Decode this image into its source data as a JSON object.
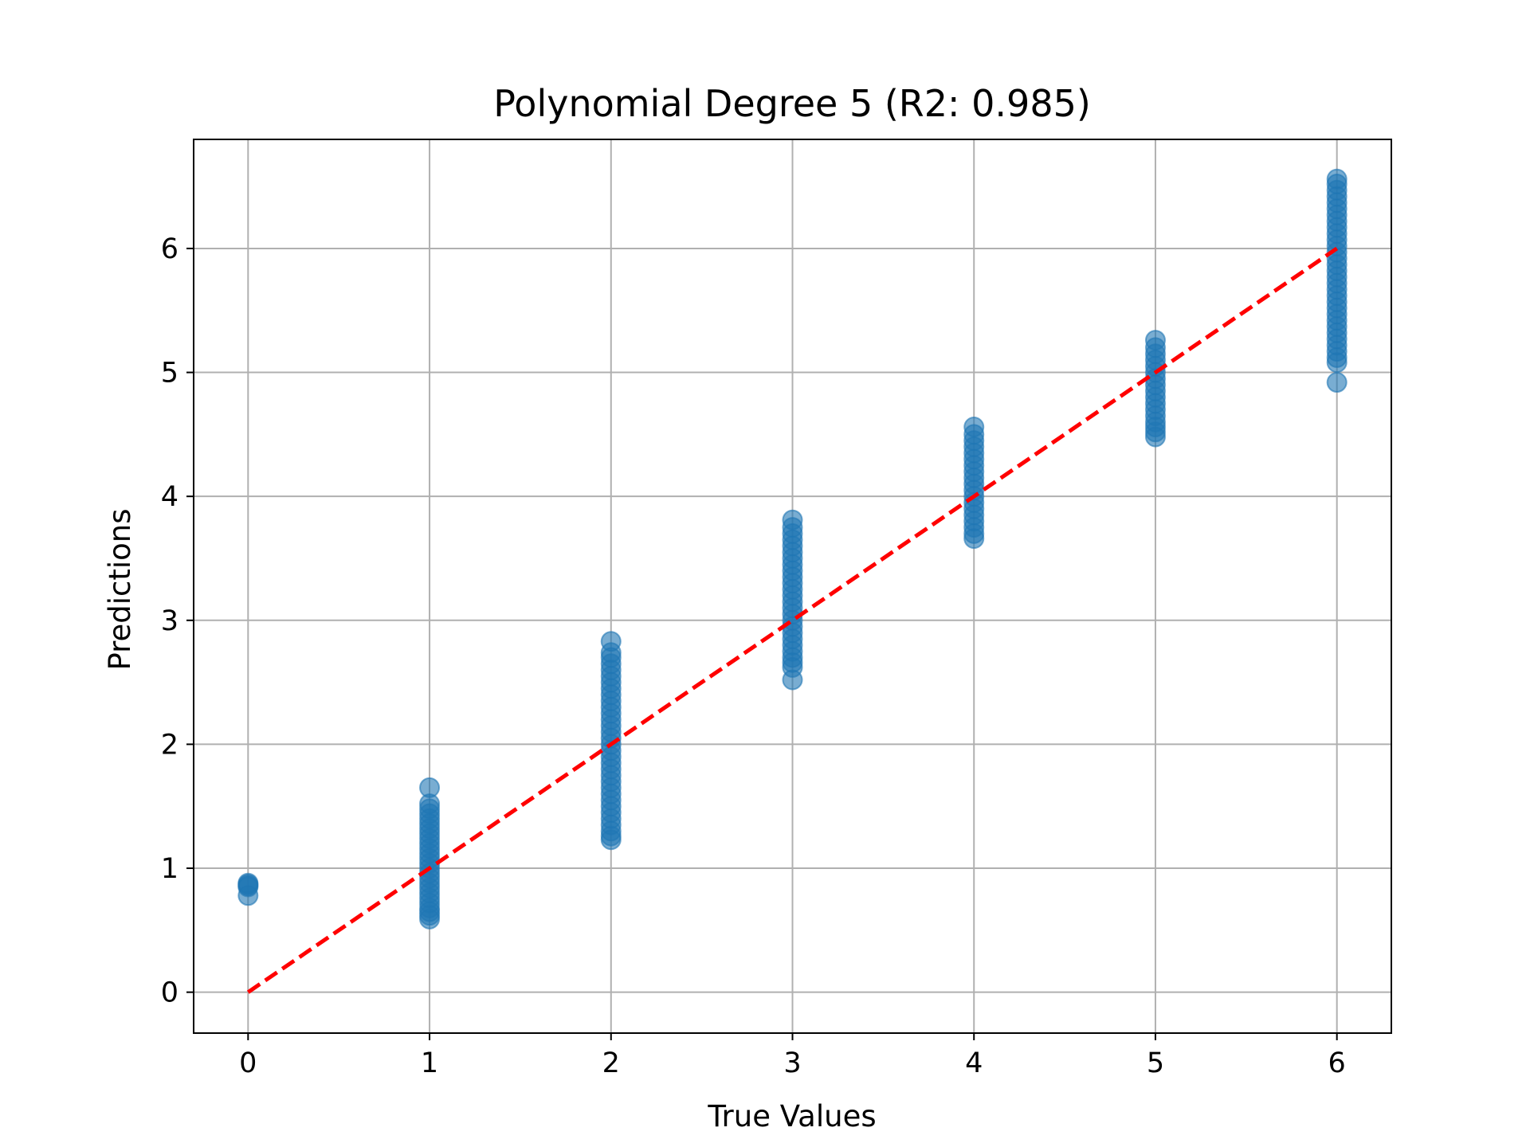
{
  "chart_data": {
    "type": "scatter",
    "title": "Polynomial Degree 5 (R2: 0.985)",
    "xlabel": "True Values",
    "ylabel": "Predictions",
    "xlim": [
      -0.3,
      6.3
    ],
    "ylim": [
      -0.33,
      6.88
    ],
    "xticks": [
      "0",
      "1",
      "2",
      "3",
      "4",
      "5",
      "6"
    ],
    "yticks": [
      "0",
      "1",
      "2",
      "3",
      "4",
      "5",
      "6"
    ],
    "grid": true,
    "legend": "none",
    "marker_color": "#1f77b4",
    "marker_alpha": 0.6,
    "series": [
      {
        "points": [
          [
            0,
            0.78
          ],
          [
            0,
            0.85
          ],
          [
            0,
            0.86
          ],
          [
            0,
            0.87
          ],
          [
            0,
            0.88
          ],
          [
            1,
            0.59
          ],
          [
            1,
            0.62
          ],
          [
            1,
            0.65
          ],
          [
            1,
            0.68
          ],
          [
            1,
            0.72
          ],
          [
            1,
            0.76
          ],
          [
            1,
            0.8
          ],
          [
            1,
            0.84
          ],
          [
            1,
            0.88
          ],
          [
            1,
            0.92
          ],
          [
            1,
            0.96
          ],
          [
            1,
            1.0
          ],
          [
            1,
            1.04
          ],
          [
            1,
            1.08
          ],
          [
            1,
            1.12
          ],
          [
            1,
            1.16
          ],
          [
            1,
            1.2
          ],
          [
            1,
            1.24
          ],
          [
            1,
            1.28
          ],
          [
            1,
            1.32
          ],
          [
            1,
            1.36
          ],
          [
            1,
            1.4
          ],
          [
            1,
            1.44
          ],
          [
            1,
            1.48
          ],
          [
            1,
            1.52
          ],
          [
            1,
            1.65
          ],
          [
            2,
            1.23
          ],
          [
            2,
            1.26
          ],
          [
            2,
            1.3
          ],
          [
            2,
            1.35
          ],
          [
            2,
            1.4
          ],
          [
            2,
            1.45
          ],
          [
            2,
            1.5
          ],
          [
            2,
            1.55
          ],
          [
            2,
            1.6
          ],
          [
            2,
            1.65
          ],
          [
            2,
            1.7
          ],
          [
            2,
            1.75
          ],
          [
            2,
            1.8
          ],
          [
            2,
            1.85
          ],
          [
            2,
            1.9
          ],
          [
            2,
            1.95
          ],
          [
            2,
            2.0
          ],
          [
            2,
            2.05
          ],
          [
            2,
            2.1
          ],
          [
            2,
            2.15
          ],
          [
            2,
            2.2
          ],
          [
            2,
            2.25
          ],
          [
            2,
            2.3
          ],
          [
            2,
            2.35
          ],
          [
            2,
            2.4
          ],
          [
            2,
            2.45
          ],
          [
            2,
            2.5
          ],
          [
            2,
            2.55
          ],
          [
            2,
            2.6
          ],
          [
            2,
            2.65
          ],
          [
            2,
            2.7
          ],
          [
            2,
            2.74
          ],
          [
            2,
            2.83
          ],
          [
            3,
            2.52
          ],
          [
            3,
            2.62
          ],
          [
            3,
            2.66
          ],
          [
            3,
            2.7
          ],
          [
            3,
            2.75
          ],
          [
            3,
            2.8
          ],
          [
            3,
            2.85
          ],
          [
            3,
            2.9
          ],
          [
            3,
            2.95
          ],
          [
            3,
            3.0
          ],
          [
            3,
            3.05
          ],
          [
            3,
            3.1
          ],
          [
            3,
            3.15
          ],
          [
            3,
            3.2
          ],
          [
            3,
            3.25
          ],
          [
            3,
            3.3
          ],
          [
            3,
            3.35
          ],
          [
            3,
            3.4
          ],
          [
            3,
            3.45
          ],
          [
            3,
            3.5
          ],
          [
            3,
            3.55
          ],
          [
            3,
            3.6
          ],
          [
            3,
            3.65
          ],
          [
            3,
            3.7
          ],
          [
            3,
            3.75
          ],
          [
            3,
            3.81
          ],
          [
            4,
            3.66
          ],
          [
            4,
            3.7
          ],
          [
            4,
            3.75
          ],
          [
            4,
            3.8
          ],
          [
            4,
            3.85
          ],
          [
            4,
            3.9
          ],
          [
            4,
            3.95
          ],
          [
            4,
            4.0
          ],
          [
            4,
            4.05
          ],
          [
            4,
            4.1
          ],
          [
            4,
            4.15
          ],
          [
            4,
            4.2
          ],
          [
            4,
            4.25
          ],
          [
            4,
            4.3
          ],
          [
            4,
            4.35
          ],
          [
            4,
            4.4
          ],
          [
            4,
            4.45
          ],
          [
            4,
            4.5
          ],
          [
            4,
            4.56
          ],
          [
            5,
            4.48
          ],
          [
            5,
            4.52
          ],
          [
            5,
            4.56
          ],
          [
            5,
            4.6
          ],
          [
            5,
            4.65
          ],
          [
            5,
            4.7
          ],
          [
            5,
            4.75
          ],
          [
            5,
            4.8
          ],
          [
            5,
            4.85
          ],
          [
            5,
            4.9
          ],
          [
            5,
            4.95
          ],
          [
            5,
            5.0
          ],
          [
            5,
            5.05
          ],
          [
            5,
            5.1
          ],
          [
            5,
            5.15
          ],
          [
            5,
            5.2
          ],
          [
            5,
            5.26
          ],
          [
            6,
            4.92
          ],
          [
            6,
            5.08
          ],
          [
            6,
            5.12
          ],
          [
            6,
            5.17
          ],
          [
            6,
            5.22
          ],
          [
            6,
            5.27
          ],
          [
            6,
            5.32
          ],
          [
            6,
            5.37
          ],
          [
            6,
            5.42
          ],
          [
            6,
            5.47
          ],
          [
            6,
            5.52
          ],
          [
            6,
            5.57
          ],
          [
            6,
            5.62
          ],
          [
            6,
            5.67
          ],
          [
            6,
            5.72
          ],
          [
            6,
            5.77
          ],
          [
            6,
            5.82
          ],
          [
            6,
            5.87
          ],
          [
            6,
            5.92
          ],
          [
            6,
            5.97
          ],
          [
            6,
            6.02
          ],
          [
            6,
            6.07
          ],
          [
            6,
            6.12
          ],
          [
            6,
            6.17
          ],
          [
            6,
            6.22
          ],
          [
            6,
            6.27
          ],
          [
            6,
            6.32
          ],
          [
            6,
            6.37
          ],
          [
            6,
            6.42
          ],
          [
            6,
            6.47
          ],
          [
            6,
            6.52
          ],
          [
            6,
            6.56
          ]
        ]
      }
    ],
    "reference_line": {
      "points": [
        [
          0,
          0
        ],
        [
          6,
          6
        ]
      ],
      "style": "dashed",
      "color": "#ff0000"
    }
  }
}
